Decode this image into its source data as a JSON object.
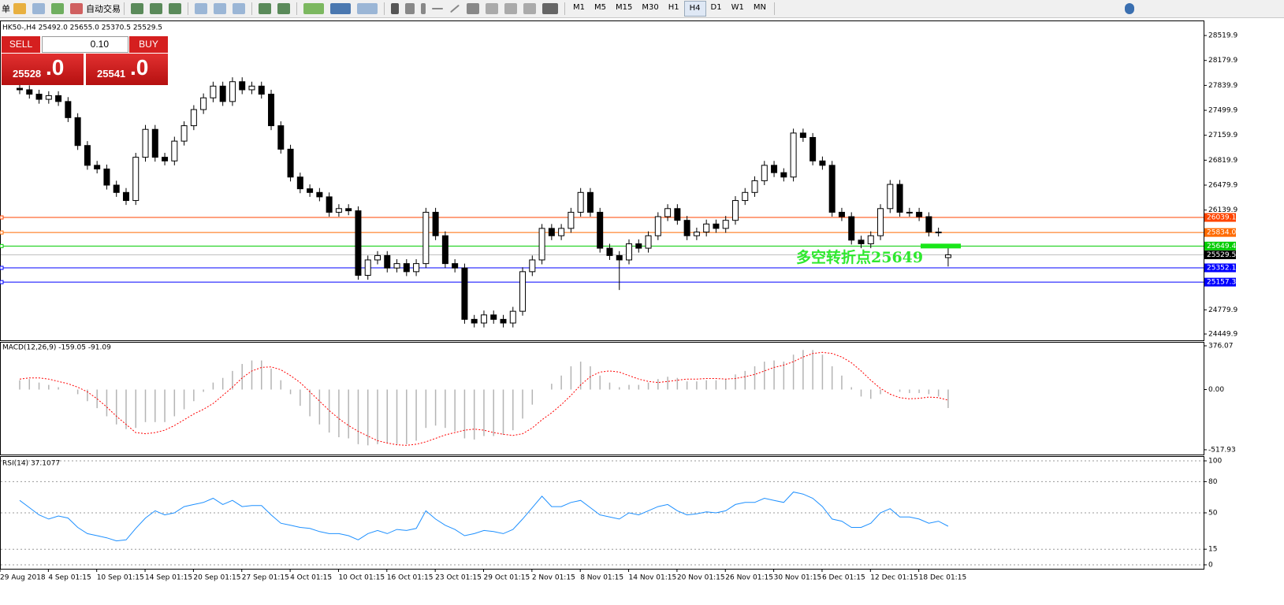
{
  "toolbar": {
    "menu": "单",
    "autotrade": "自动交易",
    "timeframes": [
      "M1",
      "M5",
      "M15",
      "M30",
      "H1",
      "H4",
      "D1",
      "W1",
      "MN"
    ],
    "active_timeframe": "H4"
  },
  "trade_panel": {
    "sell": "SELL",
    "buy": "BUY",
    "lots": "0.10",
    "bid_main": "25528",
    "bid_frac": ".0",
    "ask_main": "25541",
    "ask_frac": ".0"
  },
  "chart_data": [
    {
      "type": "candlestick",
      "title": "HK50-,H4  25492.0 25655.0 25370.5 25529.5",
      "categories": [
        "29 Aug 2018",
        null,
        null,
        null,
        null,
        "4 Sep 01:15",
        null,
        null,
        null,
        null,
        "10 Sep 01:15",
        null,
        null,
        null,
        null,
        "14 Sep 01:15",
        null,
        null,
        null,
        null,
        "20 Sep 01:15",
        null,
        null,
        null,
        null,
        "27 Sep 01:15",
        null,
        null,
        null,
        null,
        "4 Oct 01:15",
        null,
        null,
        null,
        null,
        "10 Oct 01:15",
        null,
        null,
        null,
        null,
        "16 Oct 01:15",
        null,
        null,
        null,
        null,
        "23 Oct 01:15",
        null,
        null,
        null,
        null,
        "29 Oct 01:15",
        null,
        null,
        null,
        null,
        "2 Nov 01:15",
        null,
        null,
        null,
        null,
        "8 Nov 01:15",
        null,
        null,
        null,
        null,
        "14 Nov 01:15",
        null,
        null,
        null,
        null,
        "20 Nov 01:15",
        null,
        null,
        null,
        null,
        "26 Nov 01:15",
        null,
        null,
        null,
        null,
        "30 Nov 01:15",
        null,
        null,
        null,
        null,
        "6 Dec 01:15",
        null,
        null,
        null,
        null,
        "12 Dec 01:15",
        null,
        null,
        null,
        null,
        "18 Dec 01:15",
        null
      ],
      "open": [
        27800,
        27780,
        27720,
        27650,
        27700,
        27620,
        27400,
        27020,
        26750,
        26700,
        26480,
        26380,
        26270,
        26860,
        27240,
        26860,
        26810,
        27080,
        27290,
        27510,
        27670,
        27830,
        27620,
        27890,
        27780,
        27830,
        27720,
        27290,
        26970,
        26590,
        26430,
        26380,
        26320,
        26110,
        26160,
        26130,
        25250,
        25460,
        25520,
        25350,
        25410,
        25300,
        25410,
        26110,
        25790,
        25410,
        25350,
        24650,
        24600,
        24710,
        24650,
        24600,
        24760,
        25300,
        25460,
        25890,
        25790,
        25890,
        26110,
        26380,
        26110,
        25620,
        25520,
        25460,
        25680,
        25620,
        25790,
        26050,
        26160,
        26000,
        25790,
        25840,
        25950,
        25890,
        26000,
        26270,
        26380,
        26540,
        26750,
        26650,
        26590,
        27190,
        27130,
        26810,
        26750,
        26110,
        26050,
        25730,
        25680,
        25790,
        26160,
        26490,
        26110,
        26110,
        26050,
        25840,
        25492
      ],
      "high": [
        27860,
        27840,
        27780,
        27760,
        27760,
        27680,
        27460,
        27080,
        26810,
        26760,
        26540,
        26440,
        26920,
        27300,
        27300,
        26920,
        27140,
        27350,
        27570,
        27730,
        27890,
        27890,
        27950,
        27950,
        27890,
        27890,
        27780,
        27350,
        27030,
        26650,
        26490,
        26440,
        26380,
        26220,
        26220,
        26190,
        25520,
        25580,
        25580,
        25470,
        25470,
        25470,
        26170,
        26170,
        25850,
        25470,
        25410,
        24710,
        24770,
        24770,
        24710,
        24820,
        25360,
        25520,
        25950,
        25950,
        25950,
        26170,
        26440,
        26440,
        26170,
        25680,
        25580,
        25740,
        25740,
        25850,
        26110,
        26220,
        26220,
        26060,
        25900,
        26010,
        26010,
        26060,
        26330,
        26440,
        26600,
        26810,
        26810,
        26710,
        27250,
        27250,
        27190,
        26870,
        26810,
        26170,
        26110,
        25790,
        25850,
        26220,
        26550,
        26550,
        26170,
        26170,
        26110,
        25900,
        25655
      ],
      "low": [
        27720,
        27660,
        27590,
        27590,
        27560,
        27340,
        26960,
        26690,
        26640,
        26420,
        26320,
        26210,
        26210,
        26800,
        26800,
        26750,
        26750,
        27020,
        27230,
        27450,
        27610,
        27560,
        27560,
        27720,
        27720,
        27660,
        27230,
        26910,
        26530,
        26370,
        26320,
        26260,
        26050,
        26050,
        26070,
        25190,
        25190,
        25400,
        25290,
        25290,
        25240,
        25240,
        25350,
        25730,
        25350,
        25290,
        24590,
        24540,
        24540,
        24590,
        24540,
        24540,
        24700,
        25240,
        25400,
        25730,
        25730,
        25830,
        26050,
        26050,
        25560,
        25460,
        25050,
        25400,
        25560,
        25560,
        25730,
        25990,
        25940,
        25730,
        25730,
        25780,
        25830,
        25830,
        25940,
        26210,
        26320,
        26480,
        26590,
        26530,
        26530,
        27070,
        26750,
        26690,
        26050,
        25990,
        25670,
        25620,
        25620,
        25730,
        26100,
        26050,
        26050,
        25990,
        25780,
        25780,
        25370.5
      ],
      "close": [
        27780,
        27720,
        27650,
        27700,
        27620,
        27400,
        27020,
        26750,
        26700,
        26480,
        26380,
        26270,
        26860,
        27240,
        26860,
        26810,
        27080,
        27290,
        27510,
        27670,
        27830,
        27620,
        27890,
        27780,
        27830,
        27720,
        27290,
        26970,
        26590,
        26430,
        26380,
        26320,
        26110,
        26160,
        26130,
        25250,
        25460,
        25520,
        25350,
        25410,
        25300,
        25410,
        26110,
        25790,
        25410,
        25350,
        24650,
        24600,
        24710,
        24650,
        24600,
        24760,
        25300,
        25460,
        25890,
        25790,
        25890,
        26110,
        26380,
        26110,
        25620,
        25520,
        25460,
        25680,
        25620,
        25790,
        26050,
        26160,
        26000,
        25790,
        25840,
        25950,
        25890,
        26000,
        26270,
        26380,
        26540,
        26750,
        26650,
        26590,
        27190,
        27130,
        26810,
        26750,
        26110,
        26050,
        25730,
        25680,
        25790,
        26160,
        26490,
        26110,
        26110,
        26050,
        25840,
        25840,
        25529.5
      ],
      "ylim": [
        24364,
        28714
      ],
      "yticks": [
        28519.9,
        28179.9,
        27839.9,
        27499.9,
        27159.9,
        26819.9,
        26479.9,
        26139.9,
        24779.9,
        24449.9
      ],
      "levels": [
        {
          "value": 26039.1,
          "color": "#ff4500"
        },
        {
          "value": 25834,
          "label": "25834.0",
          "color": "#ff6a00"
        },
        {
          "value": 25649.4,
          "color": "#00cc00"
        },
        {
          "value": 25352.1,
          "color": "#0000ff"
        },
        {
          "value": 25157.3,
          "color": "#0000ff"
        }
      ],
      "last_price": 25529.5,
      "annotation": "多空转折点25649",
      "annotation_color": "#2ee82e"
    },
    {
      "type": "macd",
      "title": "MACD(12,26,9) -159.05 -91.09",
      "ylim": [
        -559,
        403
      ],
      "yticks": [
        376.07,
        {
          "value": 0,
          "label": "0.00"
        },
        -517.93
      ],
      "series": [
        {
          "style": "histogram",
          "color": "#b4b4b4",
          "values": [
            80,
            90,
            60,
            40,
            20,
            0,
            -40,
            -100,
            -160,
            -230,
            -300,
            -340,
            -330,
            -280,
            -280,
            -280,
            -230,
            -170,
            -100,
            -20,
            60,
            100,
            160,
            220,
            250,
            250,
            180,
            80,
            -40,
            -140,
            -230,
            -300,
            -370,
            -410,
            -420,
            -470,
            -480,
            -470,
            -460,
            -470,
            -470,
            -440,
            -330,
            -310,
            -330,
            -360,
            -420,
            -430,
            -400,
            -400,
            -390,
            -350,
            -250,
            -130,
            0,
            50,
            120,
            200,
            240,
            200,
            120,
            60,
            20,
            40,
            40,
            60,
            90,
            110,
            100,
            70,
            70,
            80,
            80,
            90,
            130,
            160,
            200,
            240,
            250,
            240,
            300,
            340,
            340,
            300,
            200,
            120,
            20,
            -60,
            -80,
            -40,
            0,
            -20,
            -30,
            -30,
            -40,
            -60,
            -159.05
          ]
        },
        {
          "style": "dotted",
          "color": "#ff0000",
          "values": [
            90,
            100,
            100,
            90,
            70,
            50,
            20,
            -20,
            -80,
            -150,
            -230,
            -300,
            -370,
            -380,
            -370,
            -350,
            -310,
            -260,
            -210,
            -170,
            -120,
            -50,
            20,
            100,
            160,
            190,
            195,
            170,
            120,
            60,
            -20,
            -100,
            -180,
            -250,
            -310,
            -360,
            -400,
            -440,
            -460,
            -475,
            -480,
            -470,
            -450,
            -420,
            -390,
            -370,
            -350,
            -340,
            -350,
            -370,
            -385,
            -395,
            -380,
            -330,
            -260,
            -200,
            -130,
            -50,
            40,
            110,
            150,
            160,
            150,
            120,
            90,
            70,
            60,
            70,
            80,
            90,
            90,
            95,
            95,
            90,
            95,
            110,
            130,
            160,
            190,
            210,
            240,
            280,
            310,
            320,
            310,
            280,
            230,
            160,
            80,
            10,
            -40,
            -70,
            -80,
            -75,
            -65,
            -70,
            -91.09
          ]
        }
      ]
    },
    {
      "type": "rsi",
      "title": "RSI(14) 37.1077",
      "ylim": [
        -3.8,
        103.8
      ],
      "yticks": [
        100,
        80,
        50,
        15,
        0
      ],
      "grid": true,
      "series": [
        {
          "style": "line",
          "color": "#1e90ff",
          "values": [
            62,
            55,
            48,
            44,
            47,
            45,
            36,
            30,
            28,
            26,
            23,
            24,
            35,
            45,
            52,
            48,
            50,
            56,
            58,
            60,
            64,
            58,
            62,
            56,
            57,
            57,
            48,
            40,
            38,
            36,
            35,
            32,
            30,
            30,
            28,
            24,
            30,
            33,
            30,
            34,
            33,
            35,
            52,
            44,
            38,
            34,
            28,
            30,
            33,
            32,
            30,
            34,
            44,
            55,
            66,
            56,
            56,
            60,
            62,
            55,
            48,
            46,
            44,
            50,
            48,
            52,
            56,
            58,
            52,
            48,
            49,
            51,
            50,
            52,
            58,
            60,
            60,
            64,
            62,
            60,
            70,
            68,
            64,
            56,
            44,
            42,
            36,
            36,
            40,
            50,
            54,
            46,
            46,
            44,
            40,
            42,
            37.1077
          ]
        }
      ]
    }
  ]
}
